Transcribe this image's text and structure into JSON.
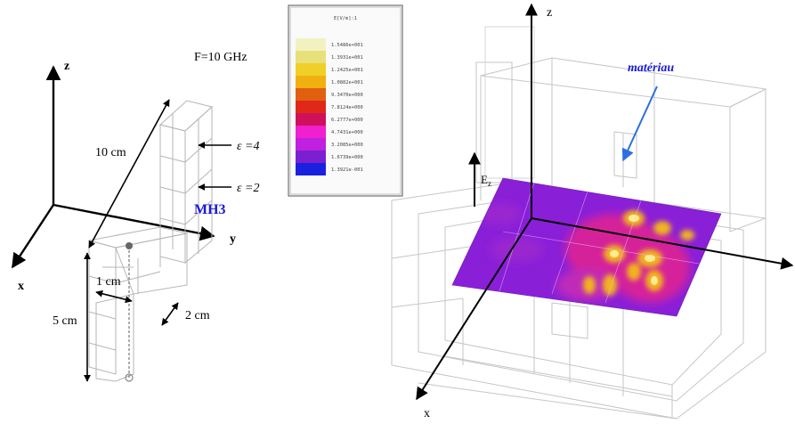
{
  "left_figure": {
    "axes": {
      "z": "z",
      "y": "y",
      "x": "x"
    },
    "frequency": "F=10 GHz",
    "dim_height": "10 cm",
    "dim_feed_length": "5 cm",
    "dim_width": "1 cm",
    "dim_depth": "2 cm",
    "eps_top": "ε =4",
    "eps_bottom": "ε =2",
    "label": "MH3",
    "label_color": "#1a1adc"
  },
  "legend": {
    "title": "E[V/m]:1",
    "values": [
      "1.5486e+001",
      "1.3931e+001",
      "1.2425e+001",
      "1.0882e+001",
      "9.3470e+000",
      "7.8124e+000",
      "6.2777e+000",
      "4.7431e+000",
      "3.2085e+000",
      "1.6739e+000",
      "1.3921e-001"
    ],
    "colors": [
      "#f2f2c0",
      "#e8e07a",
      "#f0d028",
      "#f0b010",
      "#e06010",
      "#e02818",
      "#d0105a",
      "#f020d0",
      "#c020e0",
      "#7a20d0",
      "#1a20e0"
    ]
  },
  "right_figure": {
    "axes": {
      "z": "z",
      "x": "x"
    },
    "field_label": "E",
    "field_subscript": "z",
    "material_label": "matériau",
    "material_color": "#1a1adc",
    "arrow_color": "#2b6fe0"
  }
}
